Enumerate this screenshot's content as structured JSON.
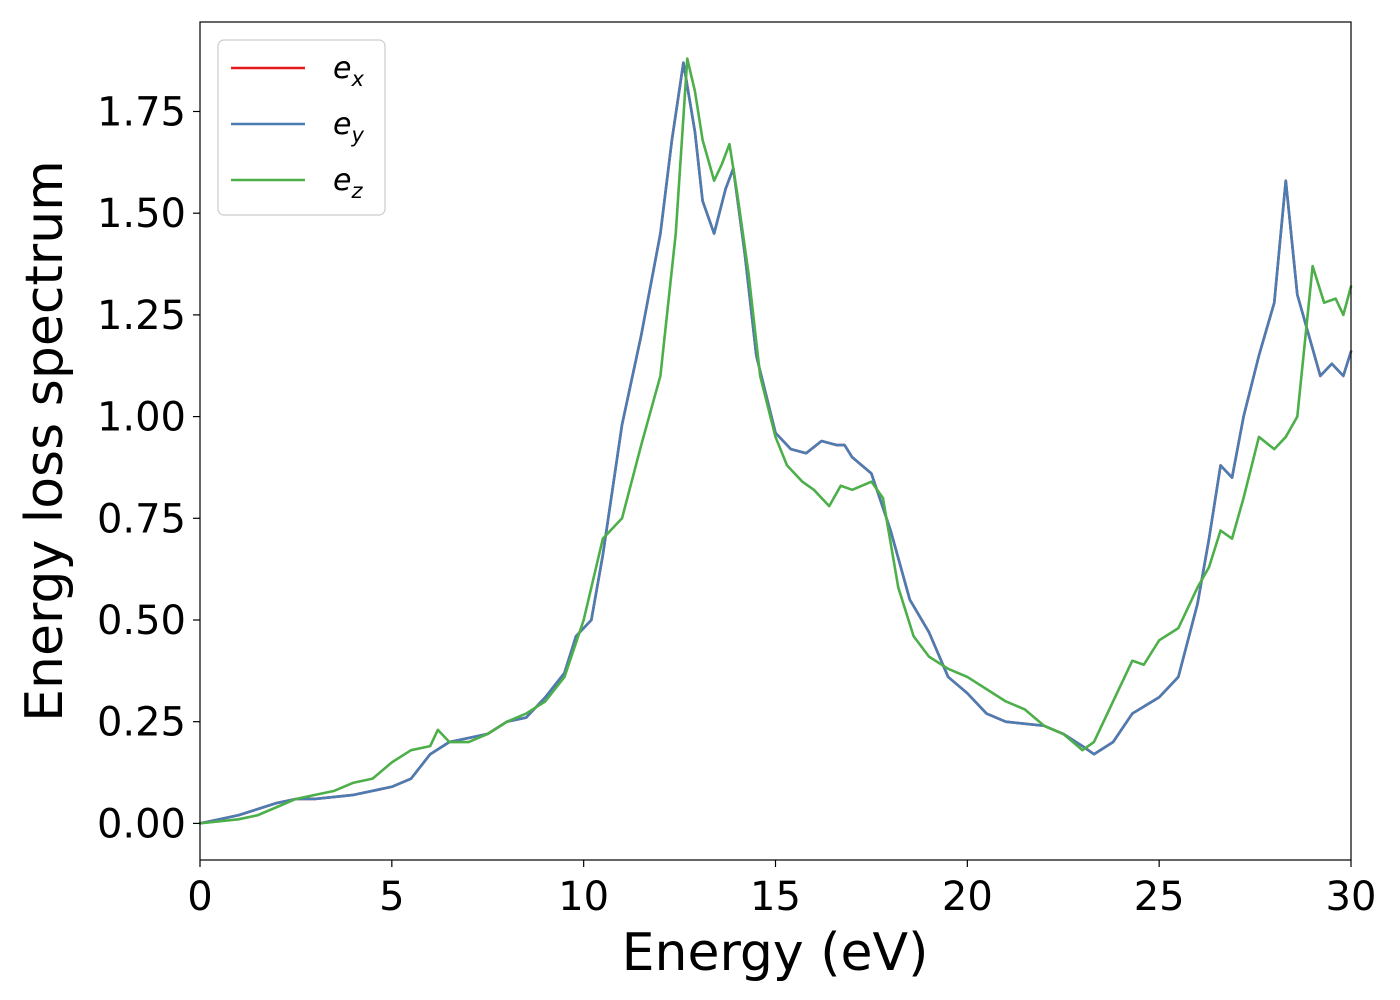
{
  "chart_data": {
    "type": "line",
    "xlabel": "Energy (eV)",
    "ylabel": "Energy loss spectrum",
    "xlim": [
      0,
      30
    ],
    "ylim": [
      -0.09,
      1.97
    ],
    "xticks": [
      0,
      5,
      10,
      15,
      20,
      25,
      30
    ],
    "xtick_labels": [
      "0",
      "5",
      "10",
      "15",
      "20",
      "25",
      "30"
    ],
    "yticks": [
      0.0,
      0.25,
      0.5,
      0.75,
      1.0,
      1.25,
      1.5,
      1.75
    ],
    "ytick_labels": [
      "0.00",
      "0.25",
      "0.50",
      "0.75",
      "1.00",
      "1.25",
      "1.50",
      "1.75"
    ],
    "grid": false,
    "legend_position": "top-left",
    "series": [
      {
        "name": "e_x",
        "legend_base": "e",
        "legend_sub": "x",
        "color": "#e41a1c",
        "x": [
          0,
          1,
          2,
          2.5,
          3,
          4,
          5,
          5.5,
          6,
          6.5,
          7,
          7.5,
          8,
          8.5,
          9,
          9.5,
          9.8,
          10.2,
          10.5,
          11,
          11.5,
          12,
          12.3,
          12.6,
          12.9,
          13.1,
          13.4,
          13.7,
          13.9,
          14.2,
          14.5,
          15,
          15.4,
          15.8,
          16.2,
          16.6,
          16.8,
          17,
          17.5,
          18,
          18.5,
          19,
          19.5,
          20,
          20.5,
          21,
          22,
          22.5,
          23,
          23.3,
          23.8,
          24.3,
          25,
          25.5,
          26,
          26.3,
          26.6,
          26.9,
          27.2,
          27.6,
          28,
          28.3,
          28.6,
          28.9,
          29.2,
          29.5,
          29.8,
          30
        ],
        "y": [
          0.0,
          0.02,
          0.05,
          0.06,
          0.06,
          0.07,
          0.09,
          0.11,
          0.17,
          0.2,
          0.21,
          0.22,
          0.25,
          0.26,
          0.31,
          0.37,
          0.46,
          0.5,
          0.66,
          0.98,
          1.2,
          1.45,
          1.68,
          1.87,
          1.7,
          1.53,
          1.45,
          1.56,
          1.61,
          1.4,
          1.15,
          0.96,
          0.92,
          0.91,
          0.94,
          0.93,
          0.93,
          0.9,
          0.86,
          0.72,
          0.55,
          0.47,
          0.36,
          0.32,
          0.27,
          0.25,
          0.24,
          0.22,
          0.19,
          0.17,
          0.2,
          0.27,
          0.31,
          0.36,
          0.54,
          0.7,
          0.88,
          0.85,
          1.0,
          1.15,
          1.28,
          1.58,
          1.3,
          1.2,
          1.1,
          1.13,
          1.1,
          1.16
        ]
      },
      {
        "name": "e_y",
        "legend_base": "e",
        "legend_sub": "y",
        "color": "#4a7db3",
        "x": [
          0,
          1,
          2,
          2.5,
          3,
          4,
          5,
          5.5,
          6,
          6.5,
          7,
          7.5,
          8,
          8.5,
          9,
          9.5,
          9.8,
          10.2,
          10.5,
          11,
          11.5,
          12,
          12.3,
          12.6,
          12.9,
          13.1,
          13.4,
          13.7,
          13.9,
          14.2,
          14.5,
          15,
          15.4,
          15.8,
          16.2,
          16.6,
          16.8,
          17,
          17.5,
          18,
          18.5,
          19,
          19.5,
          20,
          20.5,
          21,
          22,
          22.5,
          23,
          23.3,
          23.8,
          24.3,
          25,
          25.5,
          26,
          26.3,
          26.6,
          26.9,
          27.2,
          27.6,
          28,
          28.3,
          28.6,
          28.9,
          29.2,
          29.5,
          29.8,
          30
        ],
        "y": [
          0.0,
          0.02,
          0.05,
          0.06,
          0.06,
          0.07,
          0.09,
          0.11,
          0.17,
          0.2,
          0.21,
          0.22,
          0.25,
          0.26,
          0.31,
          0.37,
          0.46,
          0.5,
          0.66,
          0.98,
          1.2,
          1.45,
          1.68,
          1.87,
          1.7,
          1.53,
          1.45,
          1.56,
          1.61,
          1.4,
          1.15,
          0.96,
          0.92,
          0.91,
          0.94,
          0.93,
          0.93,
          0.9,
          0.86,
          0.72,
          0.55,
          0.47,
          0.36,
          0.32,
          0.27,
          0.25,
          0.24,
          0.22,
          0.19,
          0.17,
          0.2,
          0.27,
          0.31,
          0.36,
          0.54,
          0.7,
          0.88,
          0.85,
          1.0,
          1.15,
          1.28,
          1.58,
          1.3,
          1.2,
          1.1,
          1.13,
          1.1,
          1.16
        ]
      },
      {
        "name": "e_z",
        "legend_base": "e",
        "legend_sub": "z",
        "color": "#4daf4a",
        "x": [
          0,
          1,
          1.5,
          2,
          2.5,
          3,
          3.5,
          4,
          4.5,
          5,
          5.5,
          6,
          6.2,
          6.5,
          7,
          7.5,
          8,
          8.5,
          9,
          9.5,
          10,
          10.5,
          11,
          11.5,
          12,
          12.4,
          12.7,
          12.9,
          13.1,
          13.4,
          13.6,
          13.8,
          14,
          14.3,
          14.6,
          15,
          15.3,
          15.7,
          16,
          16.4,
          16.7,
          17,
          17.5,
          17.8,
          18.2,
          18.6,
          19,
          19.5,
          20,
          20.5,
          21,
          21.5,
          22,
          22.5,
          23,
          23.3,
          23.8,
          24.3,
          24.6,
          25,
          25.5,
          26,
          26.3,
          26.6,
          26.9,
          27.2,
          27.6,
          28,
          28.3,
          28.6,
          29,
          29.3,
          29.6,
          29.8,
          30
        ],
        "y": [
          0.0,
          0.01,
          0.02,
          0.04,
          0.06,
          0.07,
          0.08,
          0.1,
          0.11,
          0.15,
          0.18,
          0.19,
          0.23,
          0.2,
          0.2,
          0.22,
          0.25,
          0.27,
          0.3,
          0.36,
          0.5,
          0.7,
          0.75,
          0.93,
          1.1,
          1.45,
          1.88,
          1.8,
          1.68,
          1.58,
          1.62,
          1.67,
          1.55,
          1.35,
          1.1,
          0.95,
          0.88,
          0.84,
          0.82,
          0.78,
          0.83,
          0.82,
          0.84,
          0.8,
          0.58,
          0.46,
          0.41,
          0.38,
          0.36,
          0.33,
          0.3,
          0.28,
          0.24,
          0.22,
          0.18,
          0.2,
          0.3,
          0.4,
          0.39,
          0.45,
          0.48,
          0.58,
          0.63,
          0.72,
          0.7,
          0.8,
          0.95,
          0.92,
          0.95,
          1.0,
          1.37,
          1.28,
          1.29,
          1.25,
          1.32
        ]
      }
    ]
  }
}
